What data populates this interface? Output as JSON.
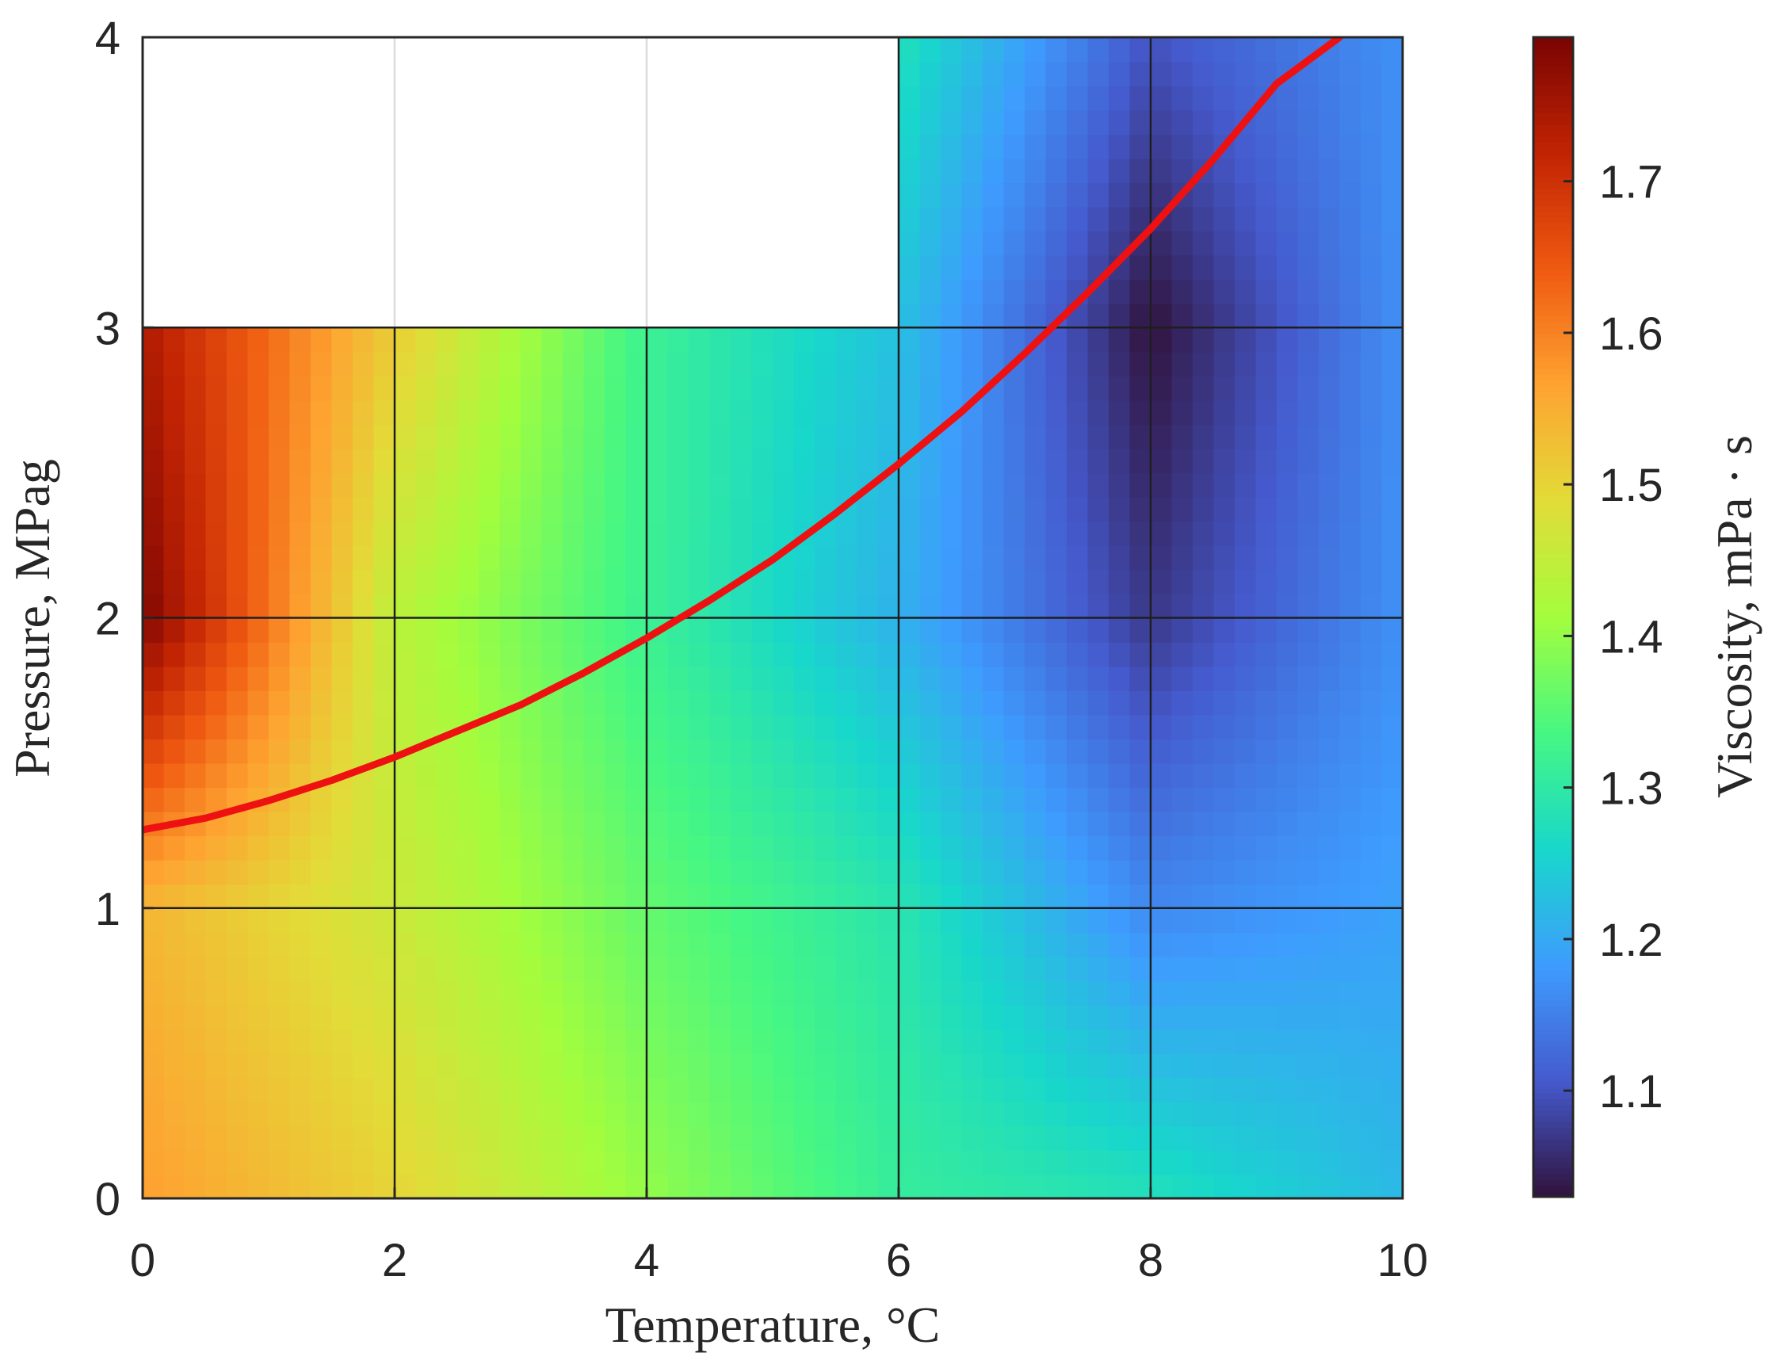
{
  "chart_data": {
    "type": "heatmap",
    "title": "",
    "xlabel": "Temperature, °C",
    "ylabel": "Pressure, MPag",
    "colorbar_label": "Viscosity, mPa · s",
    "colormap": "turbo",
    "xlim": [
      0,
      10
    ],
    "ylim": [
      0,
      4
    ],
    "x_ticks": [
      0,
      2,
      4,
      6,
      8,
      10
    ],
    "x_tick_labels": [
      "0",
      "2",
      "4",
      "6",
      "8",
      "10"
    ],
    "y_ticks": [
      0,
      1,
      2,
      3,
      4
    ],
    "y_tick_labels": [
      "0",
      "1",
      "2",
      "3",
      "4"
    ],
    "grid": true,
    "color_range": [
      1.03,
      1.795
    ],
    "colorbar_ticks": [
      1.1,
      1.2,
      1.3,
      1.4,
      1.5,
      1.6,
      1.7
    ],
    "colorbar_tick_labels": [
      "1.1",
      "1.2",
      "1.3",
      "1.4",
      "1.5",
      "1.6",
      "1.7"
    ],
    "grid_x": [
      0,
      2,
      4,
      6,
      8,
      10
    ],
    "grid_y": [
      0,
      1,
      2,
      3,
      4
    ],
    "z": [
      [
        1.57,
        1.5,
        1.4,
        1.31,
        1.28,
        1.22
      ],
      [
        1.54,
        1.46,
        1.36,
        1.29,
        1.16,
        1.19
      ],
      [
        1.79,
        1.44,
        1.32,
        1.21,
        1.07,
        1.17
      ],
      [
        1.74,
        1.51,
        1.32,
        1.23,
        1.03,
        1.17
      ],
      [
        null,
        null,
        null,
        1.28,
        1.1,
        1.17
      ]
    ],
    "series": [
      {
        "type": "line",
        "color": "#ee1111",
        "x": [
          0,
          0.5,
          1,
          1.5,
          2,
          2.5,
          3,
          3.5,
          4,
          4.5,
          5,
          5.5,
          6,
          6.5,
          7,
          7.5,
          8,
          8.5,
          9,
          9.5
        ],
        "y": [
          1.27,
          1.31,
          1.37,
          1.44,
          1.52,
          1.61,
          1.7,
          1.81,
          1.93,
          2.06,
          2.2,
          2.36,
          2.53,
          2.71,
          2.91,
          3.12,
          3.34,
          3.58,
          3.84,
          4.0
        ]
      }
    ]
  }
}
